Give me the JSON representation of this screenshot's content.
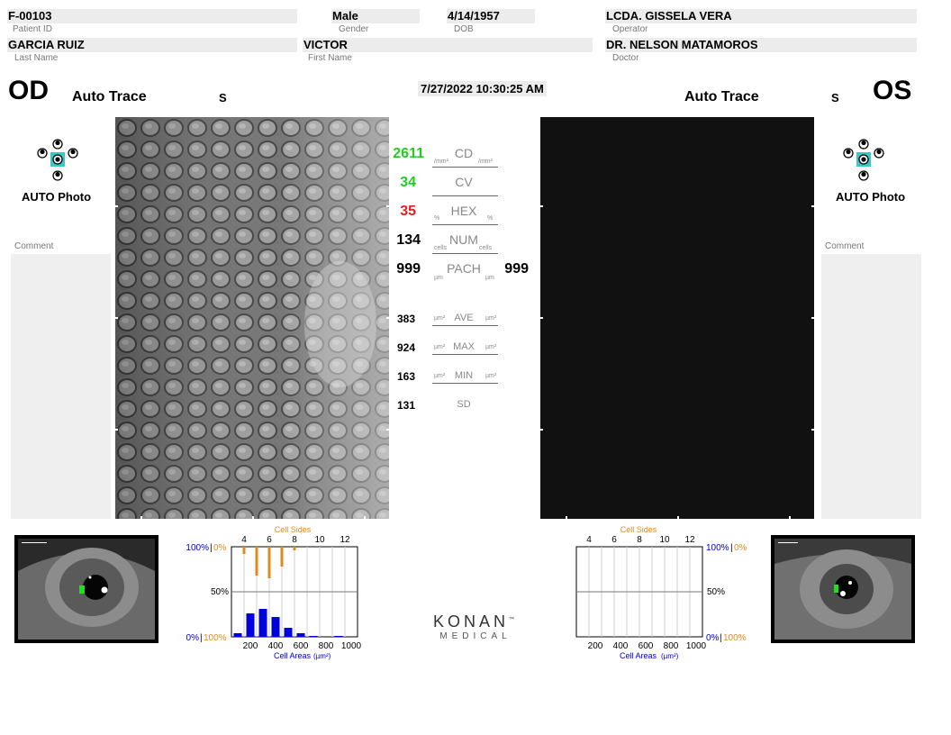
{
  "patient": {
    "id": "F-00103",
    "id_label": "Patient ID",
    "gender": "Male",
    "gender_label": "Gender",
    "dob": "4/14/1957",
    "dob_label": "DOB",
    "operator": "LCDA. GISSELA VERA",
    "operator_label": "Operator",
    "last_name": "GARCIA RUIZ",
    "last_name_label": "Last Name",
    "first_name": "VICTOR",
    "first_name_label": "First Name",
    "doctor": "DR. NELSON MATAMOROS",
    "doctor_label": "Doctor"
  },
  "datetime": "7/27/2022 10:30:25 AM",
  "od": {
    "eye": "OD",
    "trace": "Auto Trace",
    "mode": "S",
    "photo_label": "AUTO Photo",
    "comment_label": "Comment"
  },
  "os": {
    "eye": "OS",
    "trace": "Auto Trace",
    "mode": "S",
    "photo_label": "AUTO Photo",
    "comment_label": "Comment"
  },
  "metrics": [
    {
      "label": "CD",
      "od": "2611",
      "os": "",
      "od_color": "#22cc22",
      "unit": "/mm²"
    },
    {
      "label": "CV",
      "od": "34",
      "os": "",
      "od_color": "#22cc22",
      "unit": ""
    },
    {
      "label": "HEX",
      "od": "35",
      "os": "",
      "od_color": "#dd2222",
      "unit": "%"
    },
    {
      "label": "NUM",
      "od": "134",
      "os": "",
      "od_color": "#000000",
      "unit": "cells"
    },
    {
      "label": "PACH",
      "od": "999",
      "os": "999",
      "od_color": "#000000",
      "unit": "µm"
    },
    {
      "label": "AVE",
      "od": "383",
      "os": "",
      "od_color": "#000000",
      "unit": "µm²"
    },
    {
      "label": "MAX",
      "od": "924",
      "os": "",
      "od_color": "#000000",
      "unit": "µm²"
    },
    {
      "label": "MIN",
      "od": "163",
      "os": "",
      "od_color": "#000000",
      "unit": "µm²"
    },
    {
      "label": "SD",
      "od": "131",
      "os": "",
      "od_color": "#000000",
      "unit": ""
    }
  ],
  "brand": {
    "line1": "KONAN",
    "line2": "MEDICAL",
    "tm": "™"
  },
  "chart_data": [
    {
      "type": "bar",
      "eye": "OD",
      "top_axis_title": "Cell Sides",
      "top_ticks": [
        "4",
        "6",
        "8",
        "10",
        "12"
      ],
      "bottom_axis_title": "Cell Areas",
      "bottom_unit": "(µm²)",
      "bottom_ticks": [
        "200",
        "400",
        "600",
        "800",
        "1000"
      ],
      "left_labels": {
        "top_blue": "100%",
        "top_orange": "0%",
        "mid": "50%",
        "bottom_blue": "0%",
        "bottom_orange": "100%"
      },
      "sides_series": {
        "name": "Cell Sides",
        "color": "#e08a1e",
        "x": [
          4,
          5,
          6,
          7,
          8
        ],
        "values": [
          0.08,
          0.32,
          0.35,
          0.22,
          0.04
        ]
      },
      "areas_series": {
        "name": "Cell Areas",
        "color": "#0000dd",
        "x": [
          100,
          200,
          300,
          400,
          500,
          600,
          700,
          800,
          900,
          1000
        ],
        "values": [
          0.04,
          0.26,
          0.31,
          0.22,
          0.1,
          0.04,
          0.01,
          0.0,
          0.01,
          0.0
        ]
      },
      "xlim_sides": [
        3,
        13
      ],
      "xlim_areas": [
        50,
        1050
      ],
      "ylim": [
        0,
        1
      ]
    },
    {
      "type": "bar",
      "eye": "OS",
      "top_axis_title": "Cell Sides",
      "top_ticks": [
        "4",
        "6",
        "8",
        "10",
        "12"
      ],
      "bottom_axis_title": "Cell Areas",
      "bottom_unit": "(µm²)",
      "bottom_ticks": [
        "200",
        "400",
        "600",
        "800",
        "1000"
      ],
      "right_labels": {
        "top_blue": "100%",
        "top_orange": "0%",
        "mid": "50%",
        "bottom_blue": "0%",
        "bottom_orange": "100%"
      },
      "sides_series": {
        "name": "Cell Sides",
        "color": "#e08a1e",
        "x": [],
        "values": []
      },
      "areas_series": {
        "name": "Cell Areas",
        "color": "#0000dd",
        "x": [],
        "values": []
      },
      "xlim_sides": [
        3,
        13
      ],
      "xlim_areas": [
        50,
        1050
      ],
      "ylim": [
        0,
        1
      ]
    }
  ]
}
